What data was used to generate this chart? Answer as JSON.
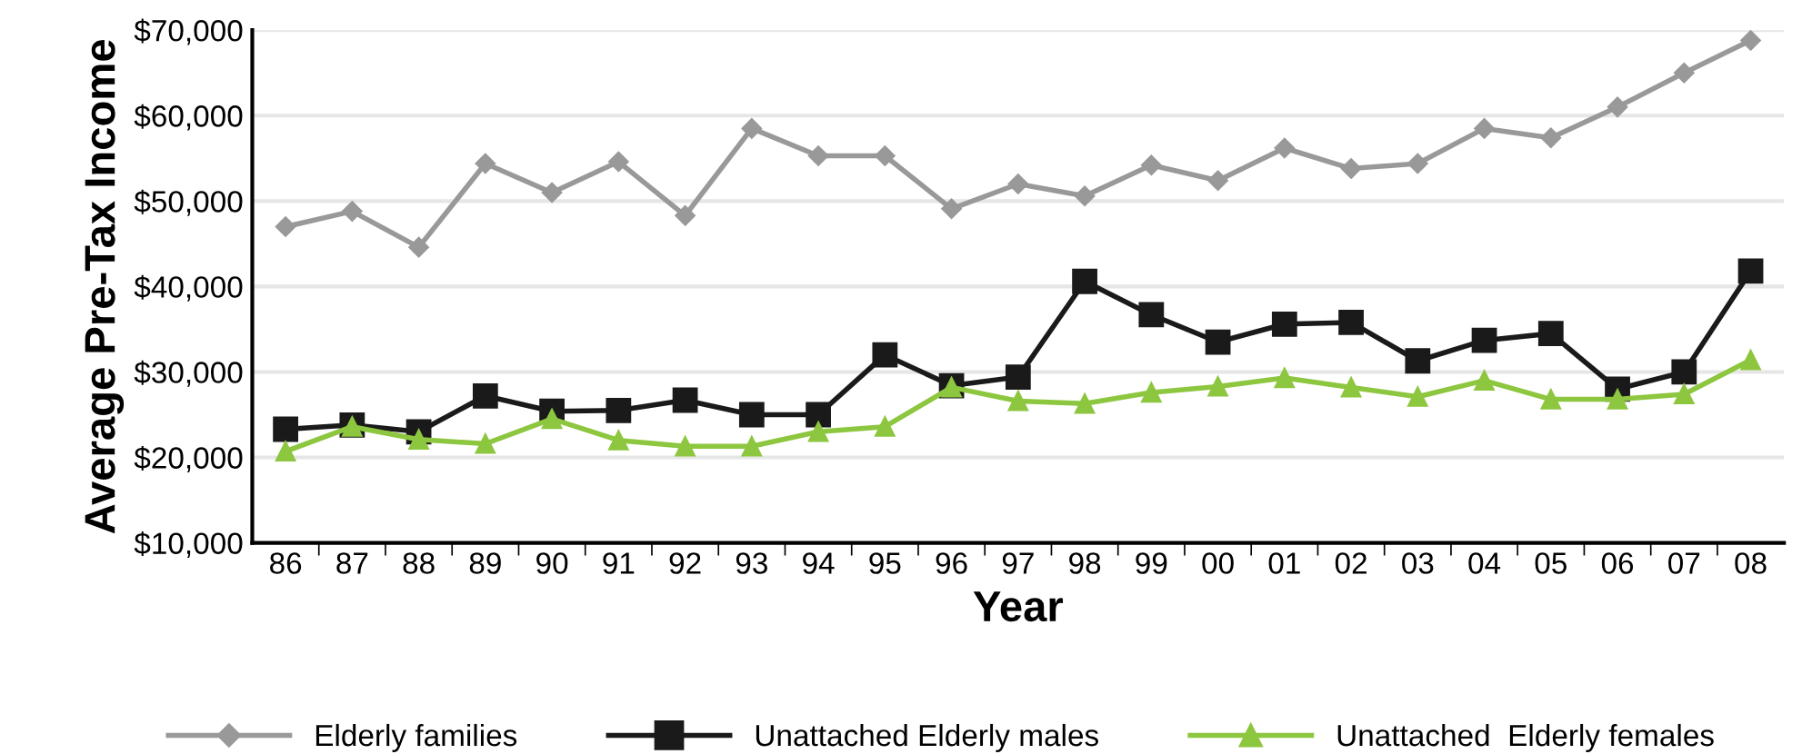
{
  "chart_data": {
    "type": "line",
    "xlabel": "Year",
    "ylabel": "Average Pre-Tax Income",
    "categories": [
      "86",
      "87",
      "88",
      "89",
      "90",
      "91",
      "92",
      "93",
      "94",
      "95",
      "96",
      "97",
      "98",
      "99",
      "00",
      "01",
      "02",
      "03",
      "04",
      "05",
      "06",
      "07",
      "08"
    ],
    "series": [
      {
        "name": "Elderly families",
        "color": "#999999",
        "marker": "diamond",
        "values": [
          47000,
          48800,
          44600,
          54400,
          51000,
          54600,
          48300,
          58500,
          55300,
          55300,
          49100,
          52000,
          50600,
          54200,
          52400,
          56200,
          53800,
          54400,
          58500,
          57400,
          61000,
          65000,
          68800
        ]
      },
      {
        "name": "Unattached Elderly males",
        "color": "#1a1a1a",
        "marker": "square",
        "values": [
          23300,
          23800,
          23000,
          27200,
          25400,
          25500,
          26700,
          25000,
          25000,
          32000,
          28400,
          29400,
          40600,
          36700,
          33500,
          35600,
          35800,
          31300,
          33700,
          34500,
          28000,
          30000,
          41800
        ]
      },
      {
        "name": "Unattached  Elderly females",
        "color": "#8dc63f",
        "marker": "triangle",
        "values": [
          20700,
          23600,
          22100,
          21600,
          24500,
          22000,
          21300,
          21300,
          23000,
          23600,
          28200,
          26600,
          26300,
          27600,
          28300,
          29300,
          28200,
          27100,
          29000,
          26800,
          26800,
          27400,
          31400
        ]
      }
    ],
    "ylim": [
      10000,
      70000
    ],
    "yticks": [
      {
        "value": 10000,
        "label": "$10,000"
      },
      {
        "value": 20000,
        "label": "$20,000"
      },
      {
        "value": 30000,
        "label": "$30,000"
      },
      {
        "value": 40000,
        "label": "$40,000"
      },
      {
        "value": 50000,
        "label": "$50,000"
      },
      {
        "value": 60000,
        "label": "$60,000"
      },
      {
        "value": 70000,
        "label": "$70,000"
      }
    ],
    "grid": "y",
    "legend": "bottom"
  }
}
